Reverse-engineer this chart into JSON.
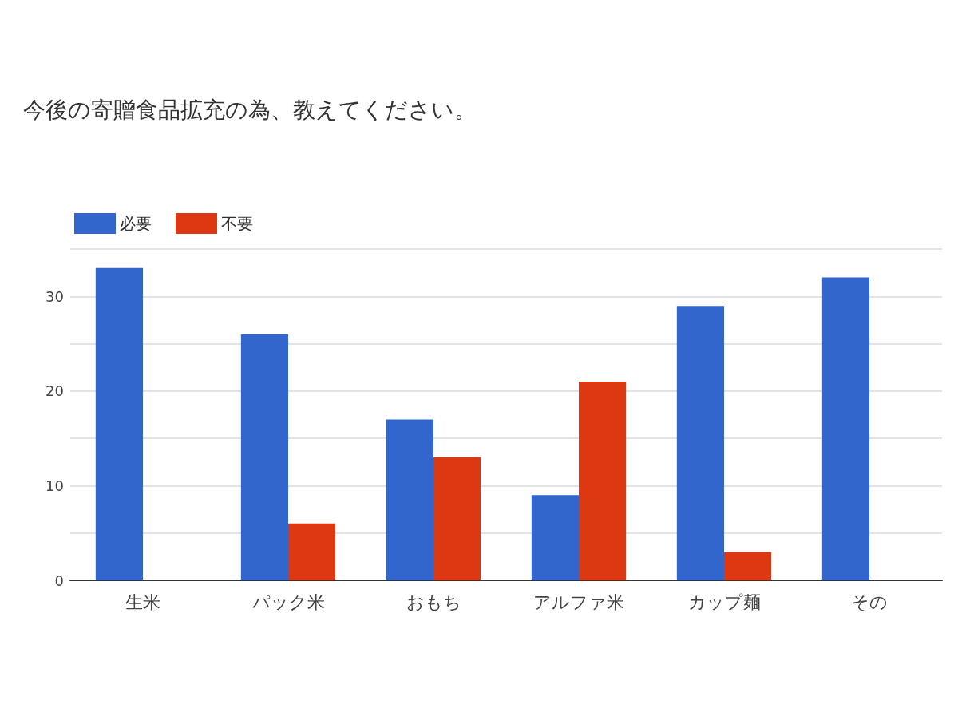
{
  "chart_data": {
    "type": "bar",
    "title": "今後の寄贈食品拡充の為、教えてください。",
    "categories": [
      "生米",
      "パック米",
      "おもち",
      "アルファ米",
      "カップ麺",
      "その"
    ],
    "series": [
      {
        "name": "必要",
        "color": "#3366cc",
        "values": [
          33,
          26,
          17,
          9,
          29,
          32
        ]
      },
      {
        "name": "不要",
        "color": "#dc3912",
        "values": [
          0,
          6,
          13,
          21,
          3,
          null
        ]
      }
    ],
    "ylim": [
      0,
      35
    ],
    "yticks": [
      0,
      {
        "value": 5,
        "label": null
      },
      10,
      {
        "value": 15,
        "label": null
      },
      20,
      {
        "value": 25,
        "label": null
      },
      30,
      {
        "value": 35,
        "label": null
      }
    ],
    "grid": "y",
    "legend": "top left"
  }
}
